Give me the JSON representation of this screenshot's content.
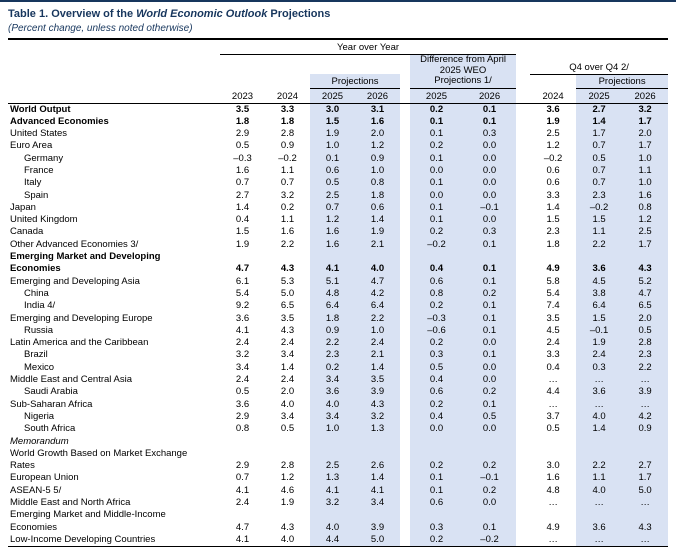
{
  "title": {
    "prefix": "Table 1. Overview of the ",
    "emphasis": "World Economic Outlook",
    "suffix": " Projections"
  },
  "subtitle": "(Percent change, unless noted otherwise)",
  "colors": {
    "title_blue": "#17365d",
    "highlight": "#d9e2f3"
  },
  "header": {
    "group_yoy": "Year over Year",
    "group_diff_lines": [
      "Difference from April",
      "2025 WEO",
      "Projections 1/"
    ],
    "group_q4": "Q4 over Q4 2/",
    "projections": "Projections",
    "years_yoy": [
      "2023",
      "2024",
      "2025",
      "2026"
    ],
    "years_diff": [
      "2025",
      "2026"
    ],
    "years_q4": [
      "2024",
      "2025",
      "2026"
    ]
  },
  "rows": [
    {
      "label": "World Output",
      "style": "bold",
      "indent": 0,
      "values": [
        "3.5",
        "3.3",
        "3.0",
        "3.1",
        "0.2",
        "0.1",
        "3.6",
        "2.7",
        "3.2"
      ]
    },
    {
      "label": "Advanced Economies",
      "style": "bold",
      "indent": 0,
      "values": [
        "1.8",
        "1.8",
        "1.5",
        "1.6",
        "0.1",
        "0.1",
        "1.9",
        "1.4",
        "1.7"
      ]
    },
    {
      "label": "United States",
      "indent": 0,
      "values": [
        "2.9",
        "2.8",
        "1.9",
        "2.0",
        "0.1",
        "0.3",
        "2.5",
        "1.7",
        "2.0"
      ]
    },
    {
      "label": "Euro Area",
      "indent": 0,
      "values": [
        "0.5",
        "0.9",
        "1.0",
        "1.2",
        "0.2",
        "0.0",
        "1.2",
        "0.7",
        "1.7"
      ]
    },
    {
      "label": "Germany",
      "indent": 1,
      "values": [
        "–0.3",
        "–0.2",
        "0.1",
        "0.9",
        "0.1",
        "0.0",
        "–0.2",
        "0.5",
        "1.0"
      ]
    },
    {
      "label": "France",
      "indent": 1,
      "values": [
        "1.6",
        "1.1",
        "0.6",
        "1.0",
        "0.0",
        "0.0",
        "0.6",
        "0.7",
        "1.1"
      ]
    },
    {
      "label": "Italy",
      "indent": 1,
      "values": [
        "0.7",
        "0.7",
        "0.5",
        "0.8",
        "0.1",
        "0.0",
        "0.6",
        "0.7",
        "1.0"
      ]
    },
    {
      "label": "Spain",
      "indent": 1,
      "values": [
        "2.7",
        "3.2",
        "2.5",
        "1.8",
        "0.0",
        "0.0",
        "3.3",
        "2.3",
        "1.6"
      ]
    },
    {
      "label": "Japan",
      "indent": 0,
      "values": [
        "1.4",
        "0.2",
        "0.7",
        "0.6",
        "0.1",
        "–0.1",
        "1.4",
        "–0.2",
        "0.8"
      ]
    },
    {
      "label": "United Kingdom",
      "indent": 0,
      "values": [
        "0.4",
        "1.1",
        "1.2",
        "1.4",
        "0.1",
        "0.0",
        "1.5",
        "1.5",
        "1.2"
      ]
    },
    {
      "label": "Canada",
      "indent": 0,
      "values": [
        "1.5",
        "1.6",
        "1.6",
        "1.9",
        "0.2",
        "0.3",
        "2.3",
        "1.1",
        "2.5"
      ]
    },
    {
      "label": "Other Advanced Economies 3/",
      "indent": 0,
      "values": [
        "1.9",
        "2.2",
        "1.6",
        "2.1",
        "–0.2",
        "0.1",
        "1.8",
        "2.2",
        "1.7"
      ]
    },
    {
      "label_lines": [
        "Emerging Market and Developing",
        "Economies"
      ],
      "style": "bold",
      "indent": 0,
      "values": [
        "4.7",
        "4.3",
        "4.1",
        "4.0",
        "0.4",
        "0.1",
        "4.9",
        "3.6",
        "4.3"
      ]
    },
    {
      "label": "Emerging and Developing Asia",
      "indent": 0,
      "values": [
        "6.1",
        "5.3",
        "5.1",
        "4.7",
        "0.6",
        "0.1",
        "5.8",
        "4.5",
        "5.2"
      ]
    },
    {
      "label": "China",
      "indent": 1,
      "values": [
        "5.4",
        "5.0",
        "4.8",
        "4.2",
        "0.8",
        "0.2",
        "5.4",
        "3.8",
        "4.7"
      ]
    },
    {
      "label": "India 4/",
      "indent": 1,
      "values": [
        "9.2",
        "6.5",
        "6.4",
        "6.4",
        "0.2",
        "0.1",
        "7.4",
        "6.4",
        "6.5"
      ]
    },
    {
      "label": "Emerging and Developing Europe",
      "indent": 0,
      "values": [
        "3.6",
        "3.5",
        "1.8",
        "2.2",
        "–0.3",
        "0.1",
        "3.5",
        "1.5",
        "2.0"
      ]
    },
    {
      "label": "Russia",
      "indent": 1,
      "values": [
        "4.1",
        "4.3",
        "0.9",
        "1.0",
        "–0.6",
        "0.1",
        "4.5",
        "–0.1",
        "0.5"
      ]
    },
    {
      "label": "Latin America and the Caribbean",
      "indent": 0,
      "values": [
        "2.4",
        "2.4",
        "2.2",
        "2.4",
        "0.2",
        "0.0",
        "2.4",
        "1.9",
        "2.8"
      ]
    },
    {
      "label": "Brazil",
      "indent": 1,
      "values": [
        "3.2",
        "3.4",
        "2.3",
        "2.1",
        "0.3",
        "0.1",
        "3.3",
        "2.4",
        "2.3"
      ]
    },
    {
      "label": "Mexico",
      "indent": 1,
      "values": [
        "3.4",
        "1.4",
        "0.2",
        "1.4",
        "0.5",
        "0.0",
        "0.4",
        "0.3",
        "2.2"
      ]
    },
    {
      "label": "Middle East and Central Asia",
      "indent": 0,
      "values": [
        "2.4",
        "2.4",
        "3.4",
        "3.5",
        "0.4",
        "0.0",
        "…",
        "…",
        "…"
      ]
    },
    {
      "label": "Saudi Arabia",
      "indent": 1,
      "values": [
        "0.5",
        "2.0",
        "3.6",
        "3.9",
        "0.6",
        "0.2",
        "4.4",
        "3.6",
        "3.9"
      ]
    },
    {
      "label": "Sub-Saharan Africa",
      "indent": 0,
      "values": [
        "3.6",
        "4.0",
        "4.0",
        "4.3",
        "0.2",
        "0.1",
        "…",
        "…",
        "…"
      ]
    },
    {
      "label": "Nigeria",
      "indent": 1,
      "values": [
        "2.9",
        "3.4",
        "3.4",
        "3.2",
        "0.4",
        "0.5",
        "3.7",
        "4.0",
        "4.2"
      ]
    },
    {
      "label": "South Africa",
      "indent": 1,
      "values": [
        "0.8",
        "0.5",
        "1.0",
        "1.3",
        "0.0",
        "0.0",
        "0.5",
        "1.4",
        "0.9"
      ]
    },
    {
      "label": "Memorandum",
      "style": "italic",
      "indent": 0,
      "values": []
    },
    {
      "label_lines": [
        "World Growth Based on Market Exchange",
        "Rates"
      ],
      "indent": 0,
      "values": [
        "2.9",
        "2.8",
        "2.5",
        "2.6",
        "0.2",
        "0.2",
        "3.0",
        "2.2",
        "2.7"
      ]
    },
    {
      "label": "European Union",
      "indent": 0,
      "values": [
        "0.7",
        "1.2",
        "1.3",
        "1.4",
        "0.1",
        "–0.1",
        "1.6",
        "1.1",
        "1.7"
      ]
    },
    {
      "label": "ASEAN-5 5/",
      "indent": 0,
      "values": [
        "4.1",
        "4.6",
        "4.1",
        "4.1",
        "0.1",
        "0.2",
        "4.8",
        "4.0",
        "5.0"
      ]
    },
    {
      "label": "Middle East and North Africa",
      "indent": 0,
      "values": [
        "2.4",
        "1.9",
        "3.2",
        "3.4",
        "0.6",
        "0.0",
        "…",
        "…",
        "…"
      ]
    },
    {
      "label_lines": [
        "Emerging Market and Middle-Income",
        "Economies"
      ],
      "indent": 0,
      "values": [
        "4.7",
        "4.3",
        "4.0",
        "3.9",
        "0.3",
        "0.1",
        "4.9",
        "3.6",
        "4.3"
      ]
    },
    {
      "label": "Low-Income Developing Countries",
      "indent": 0,
      "values": [
        "4.1",
        "4.0",
        "4.4",
        "5.0",
        "0.2",
        "–0.2",
        "…",
        "…",
        "…"
      ]
    }
  ]
}
